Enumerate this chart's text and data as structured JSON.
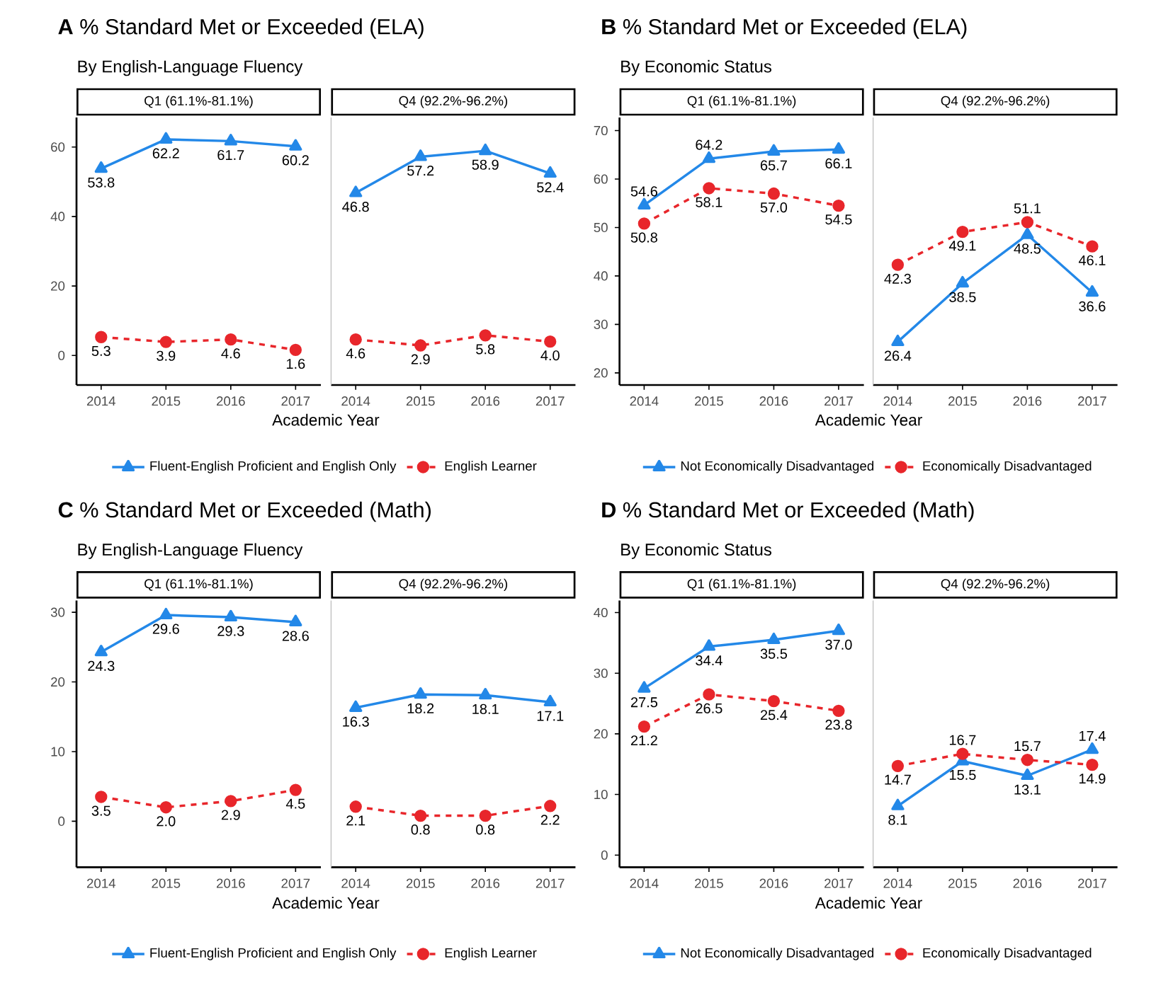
{
  "chart_data": [
    {
      "type": "line",
      "title": "**A** % Standard Met or Exceeded (ELA)",
      "subtitle": "By English-Language Fluency",
      "xlabel": "Academic Year",
      "annotations": [
        "Q1 (61.1%-81.1%)"
      ],
      "categories": [
        "2014",
        "2015",
        "2016",
        "2017"
      ],
      "ylim": [
        -8.5,
        68.5
      ],
      "yticks": [
        0,
        20,
        40,
        60
      ],
      "legend": "bottom",
      "series": [
        {
          "name": "Fluent-English Proficient and English Only",
          "color": "#2388e8",
          "marker": "triangle",
          "line_style": "solid",
          "values": [
            53.8,
            62.2,
            61.7,
            60.2
          ],
          "value_labels": [
            "53.8",
            "62.2",
            "61.7",
            "60.2"
          ]
        },
        {
          "name": "English Learner",
          "color": "#e8262b",
          "marker": "circle",
          "line_style": "dashed",
          "values": [
            5.3,
            3.9,
            4.6,
            1.6
          ],
          "value_labels": [
            "5.3",
            "3.9",
            "4.6",
            "1.6"
          ]
        }
      ]
    },
    {
      "type": "line",
      "annotations": [
        "Q4 (92.2%-96.2%)"
      ],
      "categories": [
        "2014",
        "2015",
        "2016",
        "2017"
      ],
      "ylim": [
        -8.5,
        68.5
      ],
      "yticks": [
        0,
        20,
        40,
        60
      ],
      "tick_labels": "x",
      "series": [
        {
          "color": "#2388e8",
          "marker": "triangle",
          "line_style": "solid",
          "values": [
            46.8,
            57.2,
            58.9,
            52.4
          ],
          "value_labels": [
            "46.8",
            "57.2",
            "58.9",
            "52.4"
          ]
        },
        {
          "color": "#e8262b",
          "marker": "circle",
          "line_style": "dashed",
          "values": [
            4.6,
            2.9,
            5.8,
            4.0
          ],
          "value_labels": [
            "4.6",
            "2.9",
            "5.8",
            "4.0"
          ]
        }
      ]
    },
    {
      "type": "line",
      "title": "**B** % Standard Met or Exceeded (ELA)",
      "subtitle": "By Economic Status",
      "xlabel": "Academic Year",
      "annotations": [
        "Q1 (61.1%-81.1%)"
      ],
      "categories": [
        "2014",
        "2015",
        "2016",
        "2017"
      ],
      "ylim": [
        17.5,
        72.7
      ],
      "yticks": [
        20,
        30,
        40,
        50,
        60,
        70
      ],
      "legend": "bottom",
      "series": [
        {
          "name": "Not Economically Disadvantaged",
          "color": "#2388e8",
          "marker": "triangle",
          "line_style": "solid",
          "values": [
            54.6,
            64.2,
            65.7,
            66.1
          ],
          "value_labels": [
            "54.6",
            "64.2",
            "65.7",
            "66.1"
          ]
        },
        {
          "name": "Economically Disadvantaged",
          "color": "#e8262b",
          "marker": "circle",
          "line_style": "dashed",
          "values": [
            50.8,
            58.1,
            57.0,
            54.5
          ],
          "value_labels": [
            "50.8",
            "58.1",
            "57.0",
            "54.5"
          ]
        }
      ]
    },
    {
      "type": "line",
      "annotations": [
        "Q4 (92.2%-96.2%)"
      ],
      "categories": [
        "2014",
        "2015",
        "2016",
        "2017"
      ],
      "ylim": [
        17.5,
        72.7
      ],
      "yticks": [
        20,
        30,
        40,
        50,
        60,
        70
      ],
      "tick_labels": "x",
      "series": [
        {
          "color": "#2388e8",
          "marker": "triangle",
          "line_style": "solid",
          "values": [
            26.4,
            38.5,
            48.5,
            36.6
          ],
          "value_labels": [
            "26.4",
            "38.5",
            "48.5",
            "36.6"
          ]
        },
        {
          "color": "#e8262b",
          "marker": "circle",
          "line_style": "dashed",
          "values": [
            42.3,
            49.1,
            51.1,
            46.1
          ],
          "value_labels": [
            "42.3",
            "49.1",
            "51.1",
            "46.1"
          ]
        }
      ]
    },
    {
      "type": "line",
      "title": "**C** % Standard Met or Exceeded (Math)",
      "subtitle": "By English-Language Fluency",
      "xlabel": "Academic Year",
      "annotations": [
        "Q1 (61.1%-81.1%)"
      ],
      "categories": [
        "2014",
        "2015",
        "2016",
        "2017"
      ],
      "ylim": [
        -6.6,
        31.7
      ],
      "yticks": [
        0,
        10,
        20,
        30
      ],
      "legend": "bottom",
      "series": [
        {
          "name": "Fluent-English Proficient and English Only",
          "color": "#2388e8",
          "marker": "triangle",
          "line_style": "solid",
          "values": [
            24.3,
            29.6,
            29.3,
            28.6
          ],
          "value_labels": [
            "24.3",
            "29.6",
            "29.3",
            "28.6"
          ]
        },
        {
          "name": "English Learner",
          "color": "#e8262b",
          "marker": "circle",
          "line_style": "dashed",
          "values": [
            3.5,
            2.0,
            2.9,
            4.5
          ],
          "value_labels": [
            "3.5",
            "2.0",
            "2.9",
            "4.5"
          ]
        }
      ]
    },
    {
      "type": "line",
      "annotations": [
        "Q4 (92.2%-96.2%)"
      ],
      "categories": [
        "2014",
        "2015",
        "2016",
        "2017"
      ],
      "ylim": [
        -6.6,
        31.7
      ],
      "yticks": [
        0,
        10,
        20,
        30
      ],
      "tick_labels": "x",
      "series": [
        {
          "color": "#2388e8",
          "marker": "triangle",
          "line_style": "solid",
          "values": [
            16.3,
            18.2,
            18.1,
            17.1
          ],
          "value_labels": [
            "16.3",
            "18.2",
            "18.1",
            "17.1"
          ]
        },
        {
          "color": "#e8262b",
          "marker": "circle",
          "line_style": "dashed",
          "values": [
            2.1,
            0.8,
            0.8,
            2.2
          ],
          "value_labels": [
            "2.1",
            "0.8",
            "0.8",
            "2.2"
          ]
        }
      ]
    },
    {
      "type": "line",
      "title": "**D** % Standard Met or Exceeded (Math)",
      "subtitle": "By Economic Status",
      "xlabel": "Academic Year",
      "annotations": [
        "Q1 (61.1%-81.1%)"
      ],
      "categories": [
        "2014",
        "2015",
        "2016",
        "2017"
      ],
      "ylim": [
        -2,
        42
      ],
      "yticks": [
        0,
        10,
        20,
        30,
        40
      ],
      "legend": "bottom",
      "series": [
        {
          "name": "Not Economically Disadvantaged",
          "color": "#2388e8",
          "marker": "triangle",
          "line_style": "solid",
          "values": [
            27.5,
            34.4,
            35.5,
            37.0
          ],
          "value_labels": [
            "27.5",
            "34.4",
            "35.5",
            "37.0"
          ]
        },
        {
          "name": "Economically Disadvantaged",
          "color": "#e8262b",
          "marker": "circle",
          "line_style": "dashed",
          "values": [
            21.2,
            26.5,
            25.4,
            23.8
          ],
          "value_labels": [
            "21.2",
            "26.5",
            "25.4",
            "23.8"
          ]
        }
      ]
    },
    {
      "type": "line",
      "annotations": [
        "Q4 (92.2%-96.2%)"
      ],
      "categories": [
        "2014",
        "2015",
        "2016",
        "2017"
      ],
      "ylim": [
        -2,
        42
      ],
      "yticks": [
        0,
        10,
        20,
        30,
        40
      ],
      "tick_labels": "x",
      "series": [
        {
          "color": "#2388e8",
          "marker": "triangle",
          "line_style": "solid",
          "values": [
            8.1,
            15.5,
            13.1,
            17.4
          ],
          "value_labels": [
            "8.1",
            "15.5",
            "13.1",
            "17.4"
          ]
        },
        {
          "color": "#e8262b",
          "marker": "circle",
          "line_style": "dashed",
          "values": [
            14.7,
            16.7,
            15.7,
            14.9
          ],
          "value_labels": [
            "14.7",
            "16.7",
            "15.7",
            "14.9"
          ]
        }
      ]
    }
  ]
}
